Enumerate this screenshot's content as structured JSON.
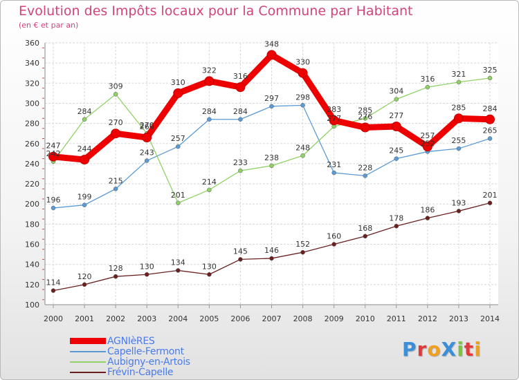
{
  "chart_data": {
    "type": "line",
    "title": "Evolution des Impôts locaux pour la Commune par Habitant",
    "subtitle": "(en € et par an)",
    "categories": [
      "2000",
      "2001",
      "2002",
      "2003",
      "2004",
      "2005",
      "2006",
      "2007",
      "2008",
      "2009",
      "2010",
      "2011",
      "2012",
      "2013",
      "2014"
    ],
    "ylim": [
      100,
      360
    ],
    "yticks": [
      100,
      120,
      140,
      160,
      180,
      200,
      220,
      240,
      260,
      280,
      300,
      320,
      340,
      360
    ],
    "grid": true,
    "legend_position": "bottom-left",
    "series": [
      {
        "name": "AGNIèRES",
        "color": "#ee0000",
        "width": "thick",
        "values": [
          247,
          244,
          270,
          266,
          310,
          322,
          316,
          348,
          330,
          283,
          276,
          277,
          257,
          285,
          284
        ],
        "labels": [
          "247",
          "244",
          "270",
          "266",
          "310",
          "322",
          "316",
          "348",
          "330",
          "283",
          "276",
          "277",
          "257",
          "285",
          "284"
        ]
      },
      {
        "name": "Capelle-Fermont",
        "color": "#5b9bd5",
        "width": "thin",
        "values": [
          196,
          199,
          215,
          243,
          257,
          284,
          284,
          297,
          298,
          231,
          228,
          245,
          252,
          255,
          265
        ],
        "labels": [
          "196",
          "199",
          "215",
          "243",
          "257",
          "284",
          "284",
          "297",
          "298",
          "231",
          "228",
          "245",
          "252",
          "255",
          "265"
        ]
      },
      {
        "name": "Aubigny-en-Artois",
        "color": "#8fd167",
        "width": "thin",
        "values": [
          242,
          284,
          309,
          270,
          201,
          214,
          233,
          238,
          248,
          277,
          285,
          304,
          316,
          321,
          325
        ],
        "labels": [
          "242",
          "284",
          "309",
          "270",
          "201",
          "214",
          "233",
          "238",
          "248",
          "277",
          "285",
          "304",
          "316",
          "321",
          "325"
        ]
      },
      {
        "name": "Frévin-Capelle",
        "color": "#6b2020",
        "width": "thin",
        "values": [
          114,
          120,
          128,
          130,
          134,
          130,
          145,
          146,
          152,
          160,
          168,
          178,
          186,
          193,
          201
        ],
        "labels": [
          "114",
          "120",
          "128",
          "130",
          "134",
          "130",
          "145",
          "146",
          "152",
          "160",
          "168",
          "178",
          "186",
          "193",
          "201"
        ]
      }
    ]
  },
  "legend": {
    "items": [
      {
        "label": "AGNIèRES",
        "color": "#ee0000"
      },
      {
        "label": "Capelle-Fermont",
        "color": "#5b9bd5"
      },
      {
        "label": "Aubigny-en-Artois",
        "color": "#8fd167"
      },
      {
        "label": "Frévin-Capelle",
        "color": "#6b2020"
      }
    ]
  },
  "logo": {
    "text": "ProXiti",
    "letters": [
      {
        "ch": "P",
        "color": "#3a8fd8"
      },
      {
        "ch": "r",
        "color": "#e03a3a"
      },
      {
        "ch": "o",
        "color": "#f0a020"
      },
      {
        "ch": "X",
        "color": "#3a8fd8"
      },
      {
        "ch": "i",
        "color": "#7bc142"
      },
      {
        "ch": "t",
        "color": "#e03a3a"
      },
      {
        "ch": "i",
        "color": "#f0a020"
      }
    ]
  }
}
